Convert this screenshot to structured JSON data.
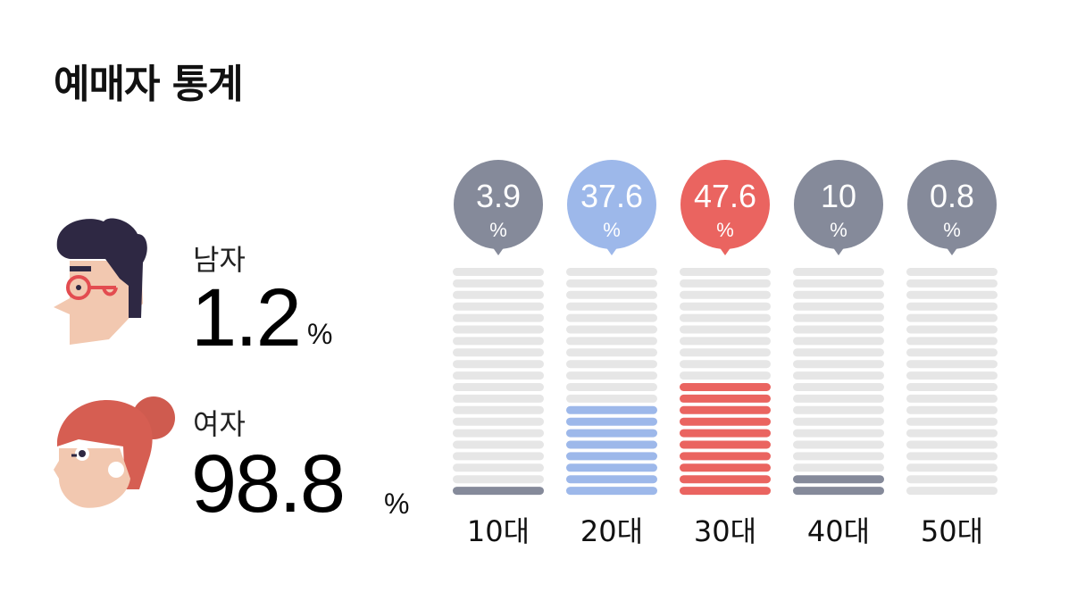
{
  "title": "예매자 통계",
  "gender": {
    "male": {
      "label": "남자",
      "value": "1.2",
      "unit": "%"
    },
    "female": {
      "label": "여자",
      "value": "98.8",
      "unit": "%"
    }
  },
  "colors": {
    "gray": "#858a9a",
    "blue": "#9db8ea",
    "red": "#ea6460",
    "empty": "#e6e6e6"
  },
  "chart_data": {
    "type": "bar",
    "categories": [
      "10대",
      "20대",
      "30대",
      "40대",
      "50대"
    ],
    "values": [
      3.9,
      37.6,
      47.6,
      10,
      0.8
    ],
    "value_labels": [
      "3.9",
      "37.6",
      "47.6",
      "10",
      "0.8"
    ],
    "unit": "%",
    "filled_segments": [
      1,
      8,
      10,
      2,
      0
    ],
    "total_segments": 20,
    "bar_colors": [
      "#858a9a",
      "#9db8ea",
      "#ea6460",
      "#858a9a",
      "#858a9a"
    ],
    "title": "",
    "xlabel": "",
    "ylabel": "",
    "grid": false,
    "legend": "none"
  }
}
